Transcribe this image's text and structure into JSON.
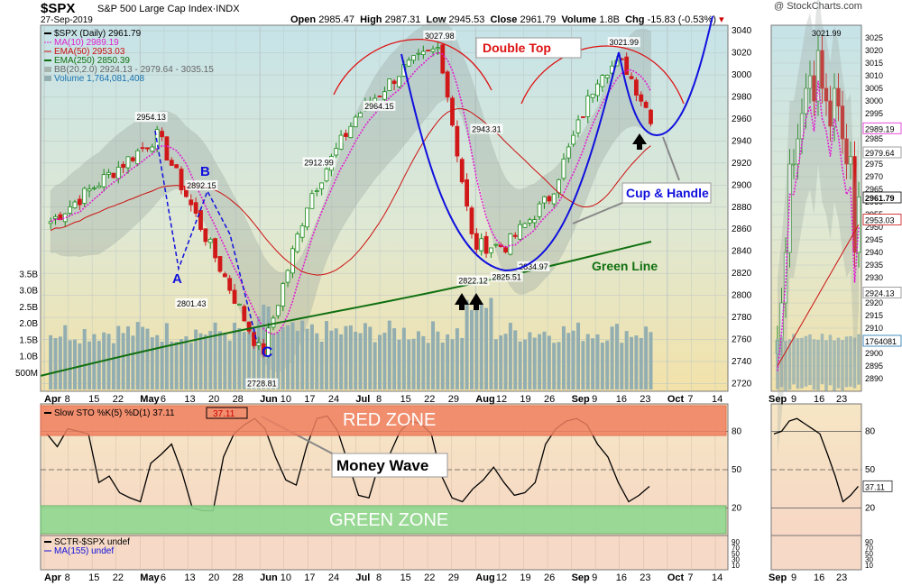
{
  "header": {
    "symbol": "$SPX",
    "name": "S&P 500 Large Cap Index",
    "exchange": "INDX",
    "date": "27-Sep-2019",
    "open_label": "Open",
    "open": "2985.47",
    "high_label": "High",
    "high": "2987.31",
    "low_label": "Low",
    "low": "2945.53",
    "close_label": "Close",
    "close": "2961.79",
    "volume_label": "Volume",
    "volume": "1.8B",
    "chg_label": "Chg",
    "chg": "-15.83 (-0.53%)",
    "brand": "@ StockCharts.com"
  },
  "legend": {
    "daily": "$SPX (Daily) 2961.79",
    "ma10": "MA(10) 2989.19",
    "ema50": "EMA(50) 2953.03",
    "ema250": "EMA(250) 2850.39",
    "bb": "BB(20,2.0) 2924.13 - 2979.64 - 3035.15",
    "volume": "Volume 1,764,081,408"
  },
  "colors": {
    "candle_up": "#1a8a1a",
    "candle_down": "#d01818",
    "ma10": "#e020d0",
    "ema50": "#cc1111",
    "ema250": "#107010",
    "volume": "#93aeb1",
    "blue": "#1010dd",
    "red_zone": "#f08060",
    "green_zone": "#90d890"
  },
  "annotations": {
    "double_top": "Double Top",
    "cup_handle": "Cup & Handle",
    "green_line": "Green Line",
    "money_wave": "Money Wave",
    "red_zone": "RED ZONE",
    "green_zone": "GREEN ZONE",
    "wave_a": "A",
    "wave_b": "B",
    "wave_c": "C"
  },
  "sto_panel": {
    "label": "Slow STO %K(5) %D(1) 37.11",
    "value": "37.11",
    "ticks": [
      "80",
      "50",
      "20"
    ]
  },
  "sctr_panel": {
    "label1": "SCTR-$SPX undef",
    "label2": "MA(155) undef",
    "ticks": [
      "90",
      "70",
      "50",
      "30",
      "10"
    ]
  },
  "chart_data": {
    "type": "line",
    "series": [
      {
        "name": "$SPX (Daily)",
        "style": "candlestick",
        "x": [
          "2019-04-01",
          "2019-05-03",
          "2019-06-03",
          "2019-06-17",
          "2019-07-01",
          "2019-07-15",
          "2019-07-26",
          "2019-08-05",
          "2019-08-15",
          "2019-08-28",
          "2019-09-12",
          "2019-09-19",
          "2019-09-27"
        ],
        "values": [
          2867,
          2945,
          2745,
          2888,
          2962,
          3005,
          3025,
          2845,
          2845,
          2890,
          3005,
          3010,
          2961.79
        ]
      },
      {
        "name": "MA(10)",
        "values": [
          2989.19
        ]
      },
      {
        "name": "EMA(50)",
        "values": [
          2953.03
        ]
      },
      {
        "name": "EMA(250)",
        "values": [
          2850.39
        ]
      }
    ],
    "price_labels": [
      {
        "date": "2019-05-01",
        "value": 2954.13
      },
      {
        "date": "2019-05-16",
        "value": 2892.15
      },
      {
        "date": "2019-05-13",
        "value": 2801.43
      },
      {
        "date": "2019-06-03",
        "value": 2728.81
      },
      {
        "date": "2019-07-08",
        "value": 2964.15
      },
      {
        "date": "2019-06-20",
        "value": 2912.99
      },
      {
        "date": "2019-07-26",
        "value": 3027.98
      },
      {
        "date": "2019-08-09",
        "value": 2943.31
      },
      {
        "date": "2019-08-05",
        "value": 2822.12
      },
      {
        "date": "2019-08-15",
        "value": 2825.51
      },
      {
        "date": "2019-08-23",
        "value": 2834.97
      },
      {
        "date": "2019-09-19",
        "value": 3021.99
      }
    ],
    "yaxis_price": {
      "ticks": [
        "3040",
        "3020",
        "3000",
        "2980",
        "2960",
        "2940",
        "2920",
        "2900",
        "2880",
        "2860",
        "2840",
        "2820",
        "2800",
        "2780",
        "2760",
        "2740",
        "2720"
      ],
      "ylim": [
        2713,
        3045
      ],
      "right_labels": [
        "2989.19",
        "2979.64",
        "2961.79",
        "2953.03",
        "2924.13"
      ]
    },
    "yaxis_volume": {
      "ticks": [
        "3.5B",
        "3.0B",
        "2.5B",
        "2.0B",
        "1.5B",
        "1.0B",
        "500M"
      ]
    },
    "xaxis": {
      "ticks": [
        "Apr",
        "8",
        "15",
        "22",
        "May",
        "6",
        "13",
        "20",
        "28",
        "Jun",
        "10",
        "17",
        "24",
        "Jul",
        "8",
        "15",
        "22",
        "29",
        "Aug",
        "12",
        "19",
        "26",
        "Sep",
        "9",
        "16",
        "23",
        "Oct",
        "7",
        "14"
      ]
    },
    "side_panel": {
      "xaxis": [
        "Sep",
        "9",
        "16",
        "23"
      ],
      "ticks": [
        "3025",
        "3020",
        "3015",
        "3010",
        "3005",
        "3000",
        "2995",
        "2990",
        "2985",
        "2980",
        "2975",
        "2970",
        "2965",
        "2960",
        "2955",
        "2950",
        "2945",
        "2940",
        "2935",
        "2930",
        "2925",
        "2920",
        "2915",
        "2910",
        "2905",
        "2900",
        "2895",
        "2890"
      ],
      "right_labels": [
        "2989.19",
        "2979.64",
        "2961.79",
        "2953.03",
        "2924.13",
        "1764081"
      ],
      "top_label": "3021.99"
    },
    "slow_sto": {
      "values": [
        78,
        68,
        82,
        80,
        78,
        40,
        45,
        32,
        28,
        25,
        55,
        62,
        70,
        48,
        20,
        18,
        18,
        60,
        78,
        85,
        90,
        82,
        60,
        42,
        38,
        68,
        90,
        92,
        80,
        55,
        30,
        28,
        55,
        62,
        80,
        88,
        86,
        78,
        45,
        28,
        25,
        35,
        42,
        52,
        40,
        30,
        32,
        40,
        70,
        82,
        88,
        90,
        85,
        70,
        60,
        40,
        25,
        30,
        37
      ]
    }
  }
}
